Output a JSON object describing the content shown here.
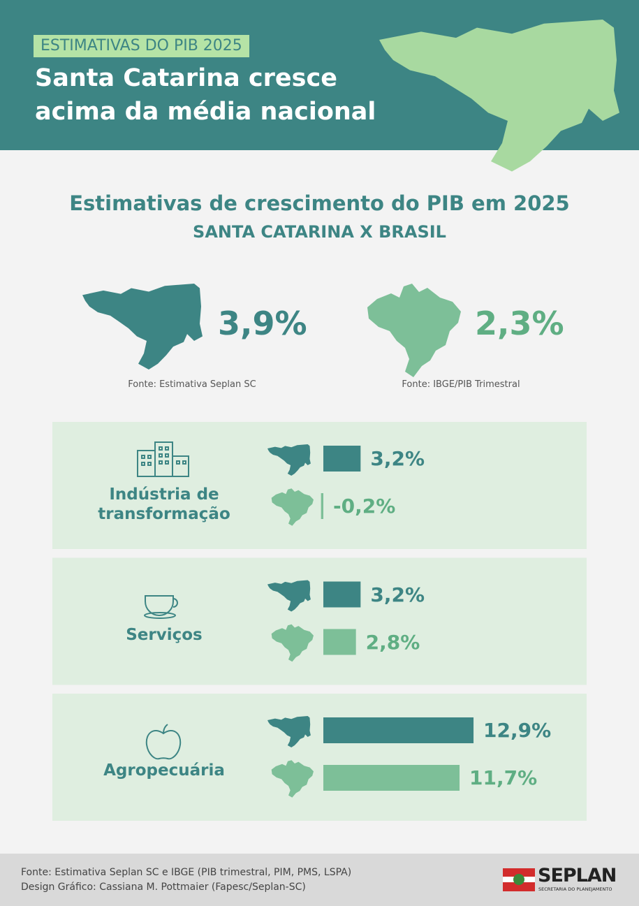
{
  "header": {
    "tag": "ESTIMATIVAS DO PIB 2025",
    "title_lines": [
      "Santa Catarina cresce",
      "acima da média nacional"
    ]
  },
  "section": {
    "title": "Estimativas de crescimento do PIB em 2025",
    "subtitle": "SANTA CATARINA X BRASIL"
  },
  "headline": [
    {
      "value": 3.9,
      "label": "3,9%",
      "source": "Fonte: Estimativa Seplan SC",
      "color": "#3d8584"
    },
    {
      "value": 2.3,
      "label": "2,3%",
      "source": "Fonte: IBGE/PIB Trimestral",
      "color": "#5fae83"
    }
  ],
  "chart_data": {
    "type": "bar",
    "orientation": "horizontal",
    "categories": [
      "Indústria de transformação",
      "Serviços",
      "Agropecuária"
    ],
    "series": [
      {
        "color": "#3d8584",
        "values": [
          3.2,
          3.2,
          12.9
        ],
        "value_labels": [
          "3,2%",
          "3,2%",
          "12,9%"
        ]
      },
      {
        "color": "#7dbf98",
        "values": [
          -0.2,
          2.8,
          11.7
        ],
        "value_labels": [
          "-0,2%",
          "2,8%",
          "11,7%"
        ]
      }
    ]
  },
  "footer": {
    "lines": [
      "Fonte: Estimativa Seplan SC e IBGE (PIB trimestral, PIM, PMS, LSPA)",
      "Design Gráfico: Cassiana M. Pottmaier (Fapesc/Seplan-SC)"
    ],
    "logo": "SEPLAN",
    "logo_sub": "SECRETARIA DO PLANEJAMENTO"
  }
}
